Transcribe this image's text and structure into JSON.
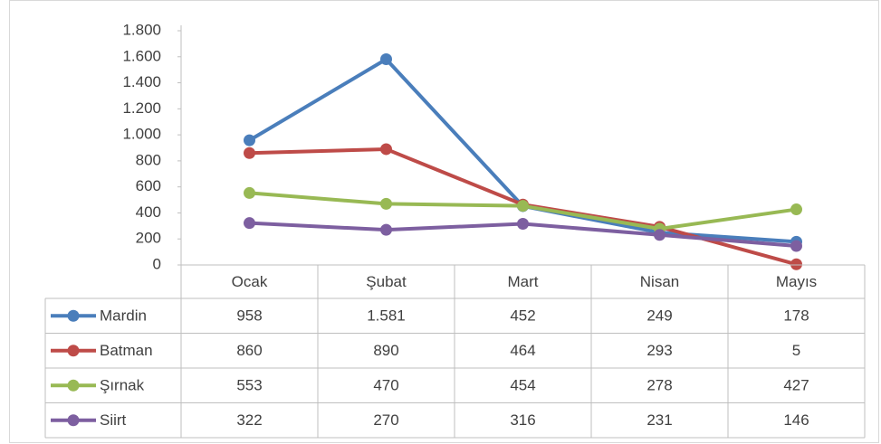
{
  "chart_data": {
    "type": "line",
    "categories": [
      "Ocak",
      "Şubat",
      "Mart",
      "Nisan",
      "Mayıs"
    ],
    "series": [
      {
        "name": "Mardin",
        "color": "#4a7ebb",
        "values": [
          958,
          1581,
          452,
          249,
          178
        ],
        "value_labels": [
          "958",
          "1.581",
          "452",
          "249",
          "178"
        ]
      },
      {
        "name": "Batman",
        "color": "#be4b48",
        "values": [
          860,
          890,
          464,
          293,
          5
        ],
        "value_labels": [
          "860",
          "890",
          "464",
          "293",
          "5"
        ]
      },
      {
        "name": "Şırnak",
        "color": "#98b954",
        "values": [
          553,
          470,
          454,
          278,
          427
        ],
        "value_labels": [
          "553",
          "470",
          "454",
          "278",
          "427"
        ]
      },
      {
        "name": "Siirt",
        "color": "#7d5fa0",
        "values": [
          322,
          270,
          316,
          231,
          146
        ],
        "value_labels": [
          "322",
          "270",
          "316",
          "231",
          "146"
        ]
      }
    ],
    "ylim": [
      0,
      1800
    ],
    "yticks": [
      0,
      200,
      400,
      600,
      800,
      {
        "value": 1000,
        "label": "1.000"
      },
      {
        "value": 1200,
        "label": "1.200"
      },
      {
        "value": 1400,
        "label": "1.400"
      },
      {
        "value": 1600,
        "label": "1.600"
      },
      {
        "value": 1800,
        "label": "1.800"
      }
    ],
    "data_table": true
  }
}
